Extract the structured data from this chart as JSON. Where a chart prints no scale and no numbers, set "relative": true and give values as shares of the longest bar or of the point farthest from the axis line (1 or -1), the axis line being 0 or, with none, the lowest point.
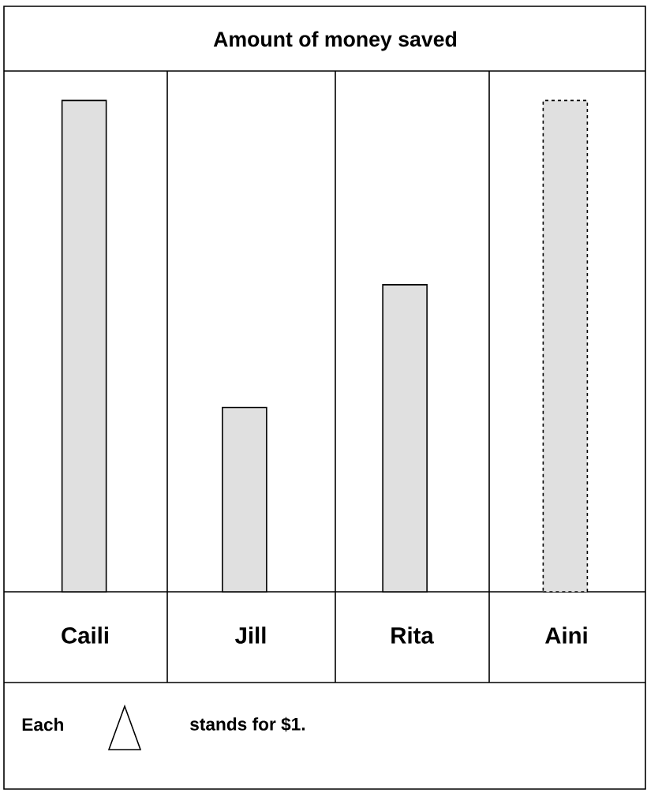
{
  "chart_data": {
    "type": "bar",
    "title": "Amount of money saved",
    "categories": [
      "Caili",
      "Jill",
      "Rita",
      "Aini"
    ],
    "relative": true,
    "series": [
      {
        "color": "#000000",
        "line_style": "solid",
        "values": [
          1,
          0.375,
          0.625,
          null
        ]
      },
      {
        "color": "#000000",
        "line_style": "dashed",
        "values": [
          null,
          null,
          null,
          1
        ]
      }
    ],
    "annotations": [
      "Each",
      "stands for $1."
    ]
  }
}
